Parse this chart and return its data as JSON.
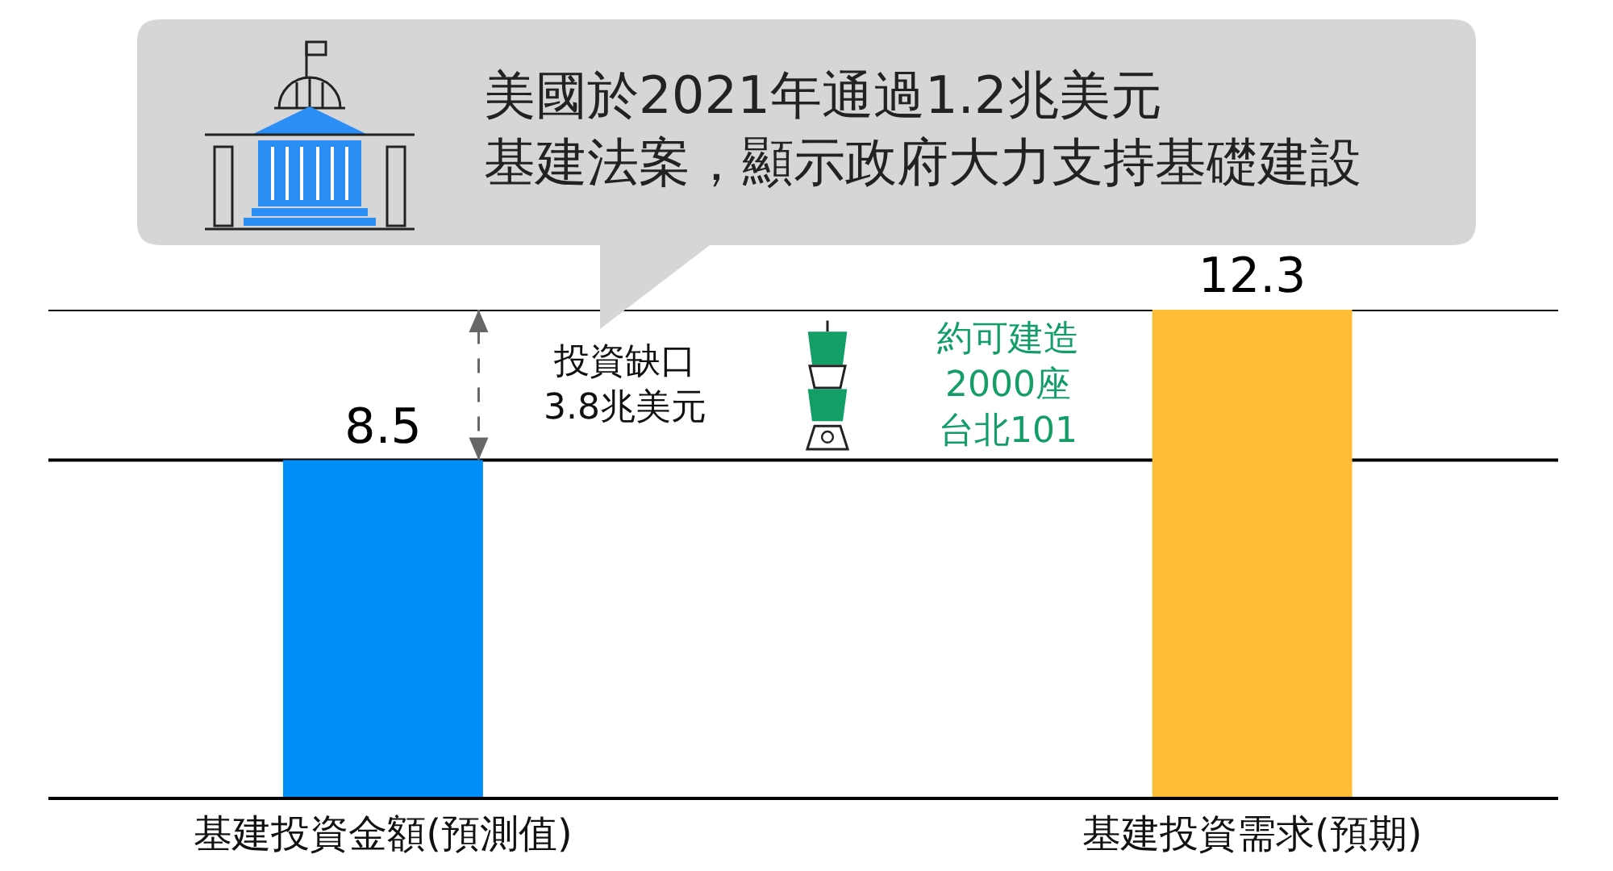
{
  "chart_data": {
    "type": "bar",
    "title": "美國於2021年通過1.2兆美元基建法案，顯示政府大力支持基礎建設",
    "categories": [
      "基建投資金額(預測值)",
      "基建投資需求(預期)"
    ],
    "values": [
      8.5,
      12.3
    ],
    "colors": [
      "#008ff8",
      "#ffbd37"
    ],
    "data_labels": true,
    "ref_lines": [
      {
        "axis": "y",
        "value": 8.5,
        "color": "#000000"
      },
      {
        "axis": "y",
        "value": 12.3,
        "color": "#000000"
      }
    ],
    "annotations": [
      "投資缺口3.8兆美元",
      "約可建造2000座台北101"
    ],
    "tick_labels": "x"
  }
}
